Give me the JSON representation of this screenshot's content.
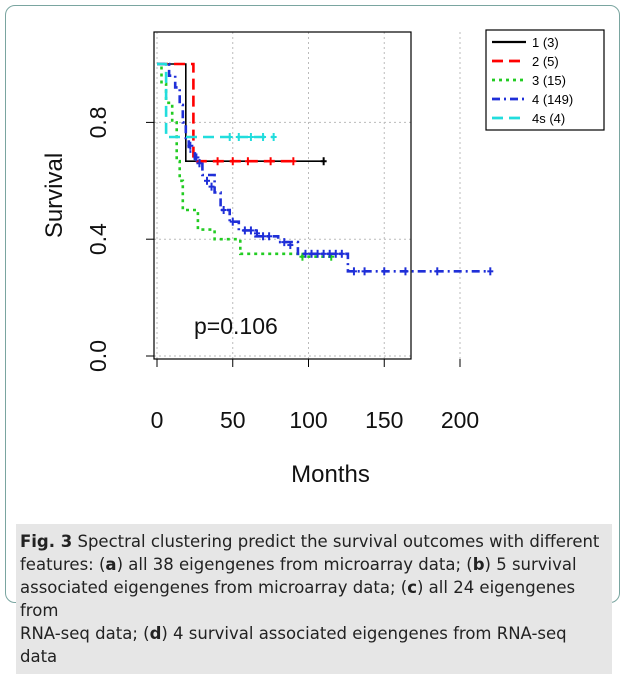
{
  "chart_data": {
    "type": "line",
    "subtype": "kaplan-meier",
    "xlabel": "Months",
    "ylabel": "Survival",
    "xlim": [
      0,
      230
    ],
    "ylim": [
      0,
      1
    ],
    "xticks": [
      "0",
      "50",
      "100",
      "150",
      "200"
    ],
    "yticks": [
      "0.0",
      "0.4",
      "0.8"
    ],
    "grid": true,
    "legend_position": "top-right",
    "annotation": "p=0.106",
    "series": [
      {
        "name": "1 (3)",
        "color": "#000000",
        "dash": "solid",
        "steps": [
          [
            0,
            1.0
          ],
          [
            19,
            1.0
          ],
          [
            19,
            0.667
          ],
          [
            110,
            0.667
          ]
        ],
        "censor": [
          [
            110,
            0.667
          ]
        ]
      },
      {
        "name": "2 (5)",
        "color": "#ff0000",
        "dash": "longdash",
        "steps": [
          [
            0,
            1.0
          ],
          [
            24,
            1.0
          ],
          [
            24,
            0.667
          ],
          [
            90,
            0.667
          ]
        ],
        "censor": [
          [
            40,
            0.667
          ],
          [
            50,
            0.667
          ],
          [
            60,
            0.667
          ],
          [
            75,
            0.667
          ],
          [
            90,
            0.667
          ]
        ]
      },
      {
        "name": "3 (15)",
        "color": "#22cc22",
        "dash": "dotted",
        "steps": [
          [
            0,
            1.0
          ],
          [
            3,
            1.0
          ],
          [
            3,
            0.933
          ],
          [
            6,
            0.933
          ],
          [
            6,
            0.867
          ],
          [
            10,
            0.867
          ],
          [
            10,
            0.8
          ],
          [
            13,
            0.8
          ],
          [
            13,
            0.667
          ],
          [
            15,
            0.667
          ],
          [
            15,
            0.6
          ],
          [
            17,
            0.6
          ],
          [
            17,
            0.5
          ],
          [
            27,
            0.5
          ],
          [
            27,
            0.433
          ],
          [
            38,
            0.433
          ],
          [
            38,
            0.4
          ],
          [
            55,
            0.4
          ],
          [
            55,
            0.35
          ],
          [
            96,
            0.35
          ],
          [
            96,
            0.34
          ],
          [
            115,
            0.34
          ]
        ],
        "censor": [
          [
            96,
            0.34
          ],
          [
            115,
            0.34
          ]
        ]
      },
      {
        "name": "4 (149)",
        "color": "#1f2fd8",
        "dash": "dashdot",
        "steps": [
          [
            0,
            1.0
          ],
          [
            8,
            1.0
          ],
          [
            8,
            0.96
          ],
          [
            12,
            0.96
          ],
          [
            12,
            0.92
          ],
          [
            15,
            0.92
          ],
          [
            15,
            0.86
          ],
          [
            17,
            0.86
          ],
          [
            17,
            0.8
          ],
          [
            19,
            0.8
          ],
          [
            19,
            0.74
          ],
          [
            21,
            0.74
          ],
          [
            21,
            0.7
          ],
          [
            25,
            0.7
          ],
          [
            25,
            0.67
          ],
          [
            30,
            0.67
          ],
          [
            30,
            0.62
          ],
          [
            38,
            0.62
          ],
          [
            38,
            0.56
          ],
          [
            42,
            0.56
          ],
          [
            42,
            0.5
          ],
          [
            48,
            0.5
          ],
          [
            48,
            0.46
          ],
          [
            54,
            0.46
          ],
          [
            54,
            0.43
          ],
          [
            65,
            0.43
          ],
          [
            65,
            0.41
          ],
          [
            80,
            0.41
          ],
          [
            80,
            0.39
          ],
          [
            93,
            0.39
          ],
          [
            93,
            0.35
          ],
          [
            126,
            0.35
          ],
          [
            126,
            0.29
          ],
          [
            220,
            0.29
          ]
        ],
        "censor": [
          [
            22,
            0.72
          ],
          [
            26,
            0.68
          ],
          [
            28,
            0.66
          ],
          [
            33,
            0.6
          ],
          [
            36,
            0.58
          ],
          [
            44,
            0.5
          ],
          [
            50,
            0.46
          ],
          [
            58,
            0.43
          ],
          [
            62,
            0.43
          ],
          [
            66,
            0.42
          ],
          [
            70,
            0.41
          ],
          [
            74,
            0.41
          ],
          [
            84,
            0.39
          ],
          [
            88,
            0.38
          ],
          [
            98,
            0.35
          ],
          [
            102,
            0.35
          ],
          [
            106,
            0.35
          ],
          [
            110,
            0.35
          ],
          [
            114,
            0.35
          ],
          [
            118,
            0.35
          ],
          [
            122,
            0.35
          ],
          [
            130,
            0.29
          ],
          [
            137,
            0.29
          ],
          [
            150,
            0.29
          ],
          [
            164,
            0.29
          ],
          [
            185,
            0.29
          ],
          [
            220,
            0.29
          ]
        ]
      },
      {
        "name": "4s (4)",
        "color": "#22dddd",
        "dash": "longdash",
        "steps": [
          [
            0,
            1.0
          ],
          [
            6,
            1.0
          ],
          [
            6,
            0.75
          ],
          [
            77,
            0.75
          ]
        ],
        "censor": [
          [
            48,
            0.75
          ],
          [
            54,
            0.75
          ],
          [
            62,
            0.75
          ],
          [
            70,
            0.75
          ],
          [
            77,
            0.75
          ]
        ]
      }
    ]
  },
  "caption": {
    "fig_label": "Fig. 3",
    "lines": [
      [
        {
          "t": " Spectral clustering predict the survival outcomes with different"
        }
      ],
      [
        {
          "t": "features: ("
        },
        {
          "t": "a",
          "b": true
        },
        {
          "t": ")  all  38 eigengenes from microarray data; ("
        },
        {
          "t": "b",
          "b": true
        },
        {
          "t": ") 5 survival"
        }
      ],
      [
        {
          "t": "associated eigengenes from microarray data; ("
        },
        {
          "t": "c",
          "b": true
        },
        {
          "t": ") all 24 eigengenes from"
        }
      ],
      [
        {
          "t": "RNA-seq data; ("
        },
        {
          "t": "d",
          "b": true
        },
        {
          "t": ") 4 survival associated eigengenes from RNA-seq data"
        }
      ]
    ]
  }
}
